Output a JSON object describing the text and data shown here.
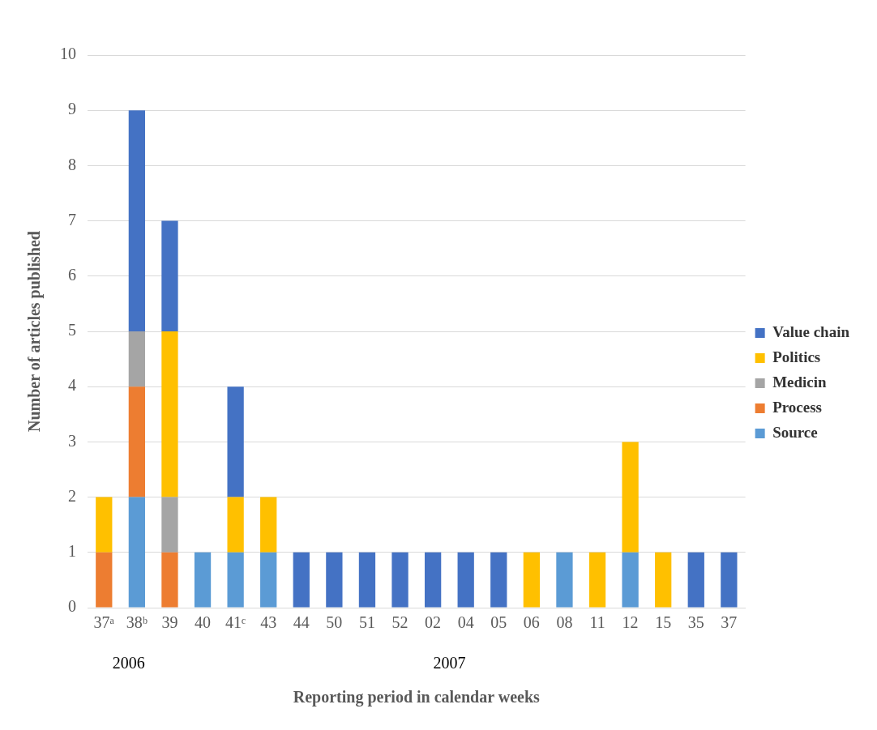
{
  "chart_data": {
    "type": "bar",
    "stacked": true,
    "xlabel": "Reporting period in calendar weeks",
    "ylabel": "Number of articles published",
    "categories": [
      "37ᵃ",
      "38ᵇ",
      "39",
      "40",
      "41ᶜ",
      "43",
      "44",
      "50",
      "51",
      "52",
      "02",
      "04",
      "05",
      "06",
      "08",
      "11",
      "12",
      "15",
      "35",
      "37"
    ],
    "series": [
      {
        "name": "Source",
        "color": "#5b9bd5",
        "values": [
          0,
          2,
          0,
          1,
          1,
          1,
          0,
          0,
          0,
          0,
          0,
          0,
          0,
          0,
          1,
          0,
          1,
          0,
          0,
          0
        ]
      },
      {
        "name": "Process",
        "color": "#ed7d31",
        "values": [
          1,
          2,
          1,
          0,
          0,
          0,
          0,
          0,
          0,
          0,
          0,
          0,
          0,
          0,
          0,
          0,
          0,
          0,
          0,
          0
        ]
      },
      {
        "name": "Medicin",
        "color": "#a5a5a5",
        "values": [
          0,
          1,
          1,
          0,
          0,
          0,
          0,
          0,
          0,
          0,
          0,
          0,
          0,
          0,
          0,
          0,
          0,
          0,
          0,
          0
        ]
      },
      {
        "name": "Politics",
        "color": "#ffc000",
        "values": [
          1,
          0,
          3,
          0,
          1,
          1,
          0,
          0,
          0,
          0,
          0,
          0,
          0,
          1,
          0,
          1,
          2,
          1,
          0,
          0
        ]
      },
      {
        "name": "Value chain",
        "color": "#4472c4",
        "values": [
          0,
          4,
          2,
          0,
          2,
          0,
          1,
          1,
          1,
          1,
          1,
          1,
          1,
          0,
          0,
          0,
          0,
          0,
          1,
          1
        ]
      }
    ],
    "ylim": [
      0,
      10
    ],
    "yticks": [
      0,
      1,
      2,
      3,
      4,
      5,
      6,
      7,
      8,
      9,
      10
    ],
    "grid": "y",
    "legend": "right",
    "annotations": [
      "2006",
      "2007"
    ]
  }
}
